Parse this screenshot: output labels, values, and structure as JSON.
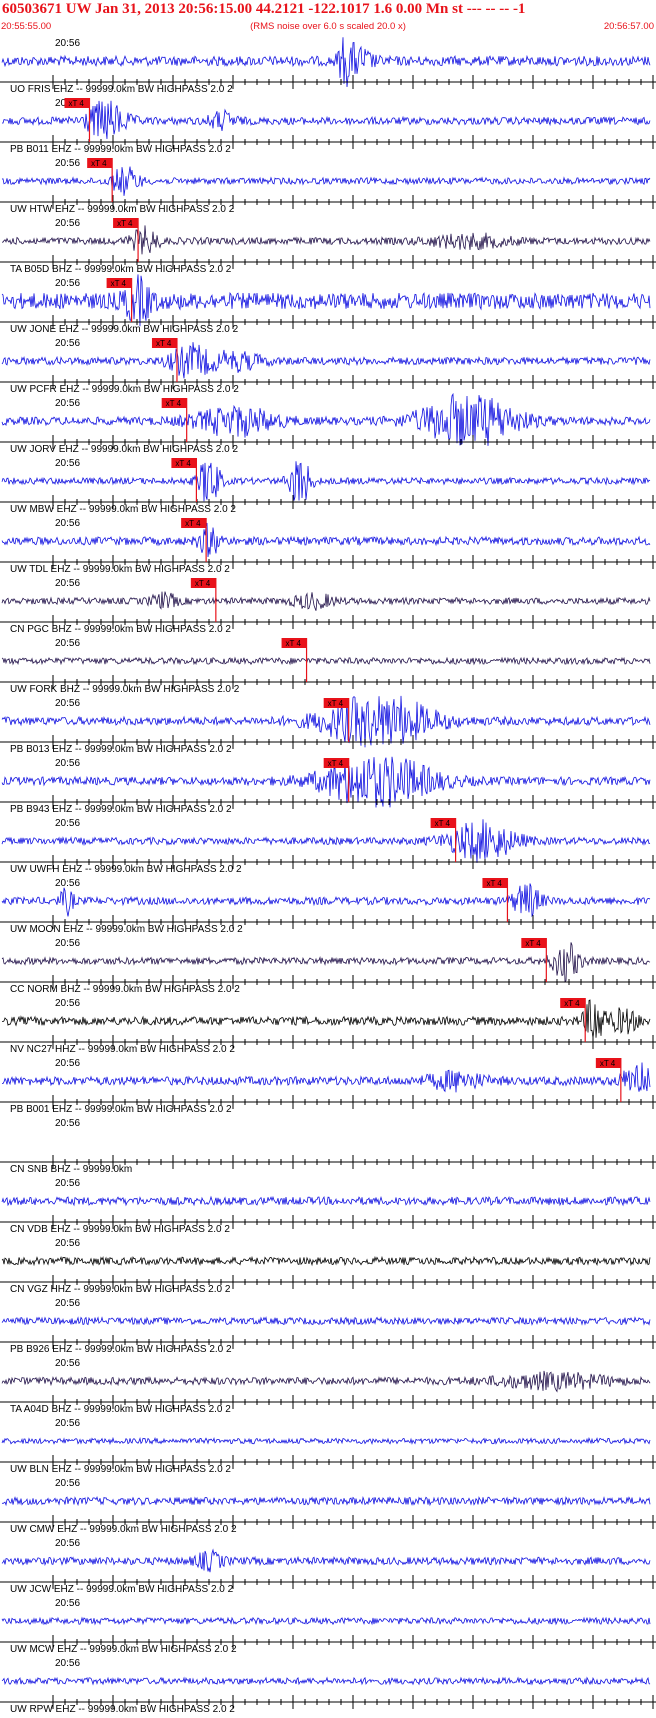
{
  "header": {
    "title": "60503671 UW Jan 31, 2013 20:56:15.00   44.2121 -122.1017  1.6 0.00 Mn st --- -- --  -1",
    "start_time": "20:55:55.00",
    "scale_note": "(RMS noise over 6.0 s scaled 20.0 x)",
    "end_time": "20:56:57.00"
  },
  "time_label": "20:56",
  "pick_label": "xT 4",
  "colors": {
    "header_text": "#e8121a",
    "trace_blue": "#1010e0",
    "trace_dark": "#22124a",
    "trace_black": "#000000",
    "pick": "#e8121a"
  },
  "traces": [
    {
      "label": "UO FRIS EHZ -- 99999.0km BW  HIGHPASS  2.0  2",
      "pick": null,
      "amp": 0.18,
      "color": "blue",
      "events": [
        [
          0.53,
          0.8,
          0.01
        ],
        [
          0.55,
          0.45,
          0.02
        ]
      ]
    },
    {
      "label": "PB B011 EHZ -- 99999.0km BW  HIGHPASS  2.0  2",
      "pick": 0.135,
      "amp": 0.14,
      "color": "blue",
      "events": [
        [
          0.16,
          0.7,
          0.03
        ],
        [
          0.34,
          0.3,
          0.02
        ]
      ]
    },
    {
      "label": "UW HTW EHZ -- 99999.0km BW  HIGHPASS  2.0  2",
      "pick": 0.17,
      "amp": 0.12,
      "color": "blue",
      "events": [
        [
          0.19,
          0.5,
          0.02
        ]
      ]
    },
    {
      "label": "TA B05D BHZ -- 99999.0km BW  HIGHPASS  2.0  2",
      "pick": 0.21,
      "amp": 0.13,
      "color": "dark",
      "events": [
        [
          0.22,
          0.45,
          0.02
        ],
        [
          0.72,
          0.22,
          0.06
        ]
      ]
    },
    {
      "label": "UW JONE EHZ -- 99999.0km BW  HIGHPASS  2.0  2",
      "pick": 0.2,
      "amp": 0.3,
      "color": "blue",
      "events": [
        [
          0.21,
          0.7,
          0.02
        ]
      ]
    },
    {
      "label": "UW PCFR EHZ -- 99999.0km BW  HIGHPASS  2.0  2",
      "pick": 0.27,
      "amp": 0.14,
      "color": "blue",
      "events": [
        [
          0.29,
          0.55,
          0.03
        ],
        [
          0.36,
          0.3,
          0.04
        ]
      ]
    },
    {
      "label": "UW JORV EHZ -- 99999.0km BW  HIGHPASS  2.0  2",
      "pick": 0.285,
      "amp": 0.15,
      "color": "blue",
      "events": [
        [
          0.36,
          0.5,
          0.06
        ],
        [
          0.72,
          1.0,
          0.07
        ]
      ]
    },
    {
      "label": "UW MBW EHZ -- 99999.0km BW  HIGHPASS  2.0  2",
      "pick": 0.3,
      "amp": 0.12,
      "color": "blue",
      "events": [
        [
          0.32,
          1.0,
          0.015
        ],
        [
          0.46,
          1.0,
          0.015
        ]
      ]
    },
    {
      "label": "UW TDL EHZ -- 99999.0km BW  HIGHPASS  2.0  2",
      "pick": 0.315,
      "amp": 0.15,
      "color": "blue",
      "events": [
        [
          0.32,
          0.55,
          0.015
        ]
      ]
    },
    {
      "label": "CN PGC BHZ -- 99999.0km BW  HIGHPASS  2.0  2",
      "pick": 0.33,
      "amp": 0.12,
      "color": "dark",
      "events": [
        [
          0.25,
          0.25,
          0.02
        ],
        [
          0.48,
          0.25,
          0.03
        ]
      ]
    },
    {
      "label": "UW FORK BHZ -- 99999.0km BW  HIGHPASS  2.0  2",
      "pick": 0.47,
      "amp": 0.12,
      "color": "dark",
      "events": []
    },
    {
      "label": "PB B013 EHZ -- 99999.0km BW  HIGHPASS  2.0  2",
      "pick": 0.535,
      "amp": 0.15,
      "color": "blue",
      "events": [
        [
          0.58,
          1.0,
          0.08
        ]
      ]
    },
    {
      "label": "PB B943 EHZ -- 99999.0km BW  HIGHPASS  2.0  2",
      "pick": 0.535,
      "amp": 0.15,
      "color": "blue",
      "events": [
        [
          0.58,
          1.0,
          0.08
        ]
      ]
    },
    {
      "label": "UW UWFH EHZ -- 99999.0km BW  HIGHPASS  2.0  2",
      "pick": 0.7,
      "amp": 0.13,
      "color": "blue",
      "events": [
        [
          0.74,
          0.7,
          0.05
        ]
      ]
    },
    {
      "label": "UW MOON EHZ -- 99999.0km BW  HIGHPASS  2.0  2",
      "pick": 0.78,
      "amp": 0.14,
      "color": "blue",
      "events": [
        [
          0.1,
          0.45,
          0.01
        ],
        [
          0.81,
          0.6,
          0.02
        ]
      ]
    },
    {
      "label": "CC NORM BHZ -- 99999.0km BW  HIGHPASS  2.0  2",
      "pick": 0.84,
      "amp": 0.13,
      "color": "dark",
      "events": [
        [
          0.87,
          0.7,
          0.02
        ]
      ]
    },
    {
      "label": "NV NC27 HHZ -- 99999.0km BW  HIGHPASS  2.0  2",
      "pick": 0.9,
      "amp": 0.16,
      "color": "black",
      "events": [
        [
          0.915,
          0.9,
          0.015
        ],
        [
          0.96,
          0.4,
          0.02
        ]
      ]
    },
    {
      "label": "PB B001 EHZ -- 99999.0km BW  HIGHPASS  2.0  2",
      "pick": 0.955,
      "amp": 0.16,
      "color": "blue",
      "events": [
        [
          0.98,
          0.7,
          0.02
        ],
        [
          0.7,
          0.3,
          0.04
        ]
      ]
    },
    {
      "label": "CN SNB BHZ -- 99999.0km",
      "pick": null,
      "amp": 0.0,
      "color": "blue",
      "events": []
    },
    {
      "label": "CN VDB EHZ -- 99999.0km BW  HIGHPASS  2.0  2",
      "pick": null,
      "amp": 0.15,
      "color": "blue",
      "events": []
    },
    {
      "label": "CN VGZ HHZ -- 99999.0km BW  HIGHPASS  2.0  2",
      "pick": null,
      "amp": 0.14,
      "color": "black",
      "events": []
    },
    {
      "label": "PB B926 EHZ -- 99999.0km BW  HIGHPASS  2.0  2",
      "pick": null,
      "amp": 0.13,
      "color": "blue",
      "events": []
    },
    {
      "label": "TA A04D BHZ -- 99999.0km BW  HIGHPASS  2.0  2",
      "pick": null,
      "amp": 0.14,
      "color": "dark",
      "events": [
        [
          0.85,
          0.25,
          0.08
        ]
      ]
    },
    {
      "label": "UW BLN EHZ -- 99999.0km BW  HIGHPASS  2.0  2",
      "pick": null,
      "amp": 0.1,
      "color": "blue",
      "events": []
    },
    {
      "label": "UW CMW EHZ -- 99999.0km BW  HIGHPASS  2.0  2",
      "pick": null,
      "amp": 0.14,
      "color": "blue",
      "events": []
    },
    {
      "label": "UW JCW EHZ -- 99999.0km BW  HIGHPASS  2.0  2",
      "pick": null,
      "amp": 0.14,
      "color": "blue",
      "events": [
        [
          0.32,
          0.3,
          0.02
        ]
      ]
    },
    {
      "label": "UW MCW EHZ -- 99999.0km BW  HIGHPASS  2.0  2",
      "pick": null,
      "amp": 0.12,
      "color": "blue",
      "events": []
    },
    {
      "label": "UW RPW EHZ -- 99999.0km BW  HIGHPASS  2.0  2",
      "pick": null,
      "amp": 0.12,
      "color": "blue",
      "events": []
    }
  ]
}
